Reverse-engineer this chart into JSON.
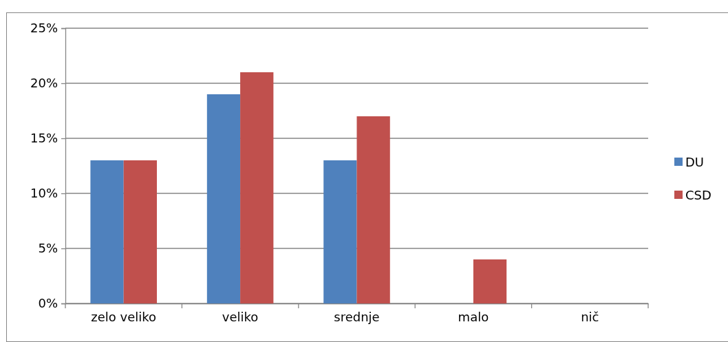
{
  "chart_data": {
    "type": "bar",
    "categories": [
      "zelo veliko",
      "veliko",
      "srednje",
      "malo",
      "nič"
    ],
    "series": [
      {
        "name": "DU",
        "color": "#4f81bd",
        "values": [
          13,
          19,
          13,
          0,
          0
        ]
      },
      {
        "name": "CSD",
        "color": "#c0504d",
        "values": [
          13,
          21,
          17,
          4,
          0
        ]
      }
    ],
    "ylim": [
      0,
      25
    ],
    "yticks": [
      {
        "value": 0,
        "label": "0%"
      },
      {
        "value": 5,
        "label": "5%"
      },
      {
        "value": 10,
        "label": "10%"
      },
      {
        "value": 15,
        "label": "15%"
      },
      {
        "value": 20,
        "label": "20%"
      },
      {
        "value": 25,
        "label": "25%"
      }
    ],
    "grid": "y",
    "legend": "right"
  }
}
